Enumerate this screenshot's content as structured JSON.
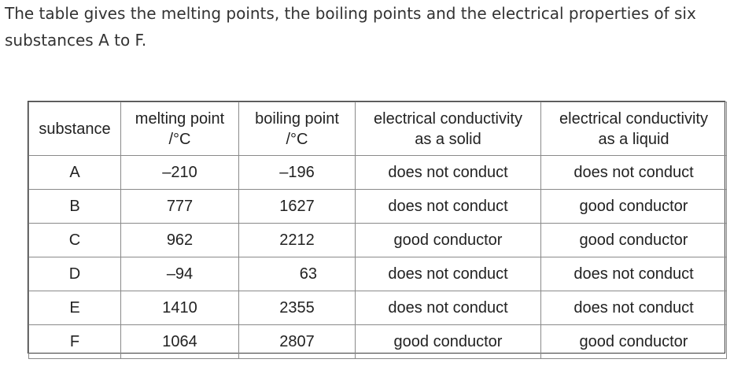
{
  "intro": {
    "line1": "The table gives the melting points, the boiling points and the electrical properties of six",
    "line2": "substances A to F."
  },
  "table": {
    "headers": [
      {
        "line1": "substance",
        "line2": ""
      },
      {
        "line1": "melting point",
        "line2": "/°C"
      },
      {
        "line1": "boiling point",
        "line2": "/°C"
      },
      {
        "line1": "electrical conductivity",
        "line2": "as a solid"
      },
      {
        "line1": "electrical conductivity",
        "line2": "as a liquid"
      }
    ],
    "rows": [
      {
        "substance": "A",
        "melting": "–210",
        "boiling": "–196",
        "solid": "does not conduct",
        "liquid": "does not conduct"
      },
      {
        "substance": "B",
        "melting": "777",
        "boiling": "1627",
        "solid": "does not conduct",
        "liquid": "good conductor"
      },
      {
        "substance": "C",
        "melting": "962",
        "boiling": "2212",
        "solid": "good conductor",
        "liquid": "good conductor"
      },
      {
        "substance": "D",
        "melting": "–94",
        "boiling": "63",
        "solid": "does not conduct",
        "liquid": "does not conduct"
      },
      {
        "substance": "E",
        "melting": "1410",
        "boiling": "2355",
        "solid": "does not conduct",
        "liquid": "does not conduct"
      },
      {
        "substance": "F",
        "melting": "1064",
        "boiling": "2807",
        "solid": "good conductor",
        "liquid": "good conductor"
      }
    ]
  }
}
